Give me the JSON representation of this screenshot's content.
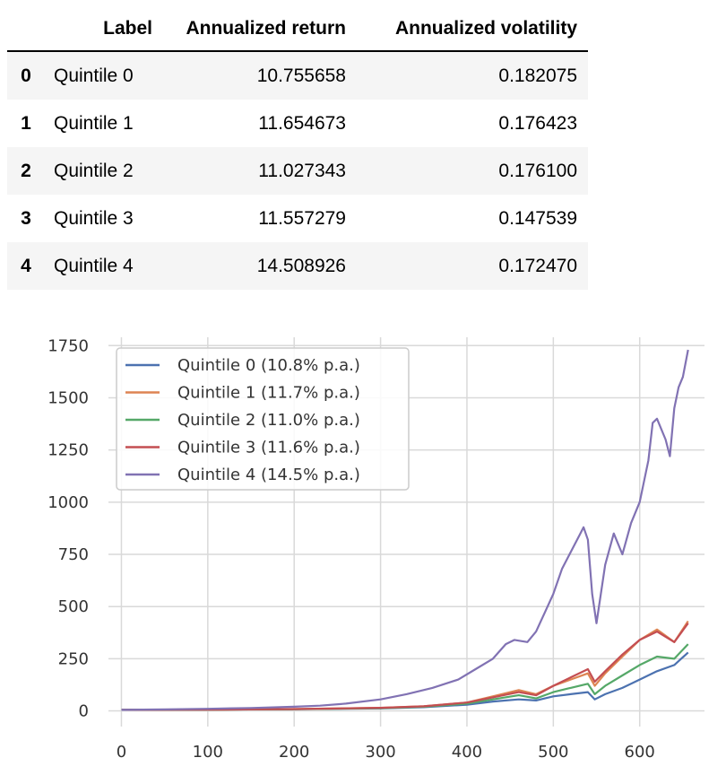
{
  "table": {
    "columns": [
      "Label",
      "Annualized return",
      "Annualized volatility"
    ],
    "rows": [
      {
        "index": "0",
        "label": "Quintile 0",
        "ret": "10.755658",
        "vol": "0.182075"
      },
      {
        "index": "1",
        "label": "Quintile 1",
        "ret": "11.654673",
        "vol": "0.176423"
      },
      {
        "index": "2",
        "label": "Quintile 2",
        "ret": "11.027343",
        "vol": "0.176100"
      },
      {
        "index": "3",
        "label": "Quintile 3",
        "ret": "11.557279",
        "vol": "0.147539"
      },
      {
        "index": "4",
        "label": "Quintile 4",
        "ret": "14.508926",
        "vol": "0.172470"
      }
    ]
  },
  "chart_data": {
    "type": "line",
    "title": "",
    "xlabel": "",
    "ylabel": "",
    "xlim": [
      -15,
      675
    ],
    "ylim": [
      -75,
      1790
    ],
    "xticks": [
      0,
      100,
      200,
      300,
      400,
      500,
      600
    ],
    "yticks": [
      0,
      250,
      500,
      750,
      1000,
      1250,
      1500,
      1750
    ],
    "grid": true,
    "legend_position": "upper left",
    "series": [
      {
        "name": "Quintile 0 (10.8% p.a.)",
        "color": "#4c72b0",
        "x": [
          0,
          100,
          200,
          300,
          350,
          400,
          430,
          460,
          480,
          500,
          520,
          540,
          548,
          560,
          580,
          600,
          620,
          640,
          656
        ],
        "y": [
          5,
          6,
          8,
          12,
          18,
          30,
          45,
          55,
          50,
          70,
          80,
          90,
          55,
          80,
          110,
          150,
          190,
          220,
          280
        ]
      },
      {
        "name": "Quintile 1 (11.7% p.a.)",
        "color": "#dd8452",
        "x": [
          0,
          100,
          200,
          300,
          350,
          400,
          430,
          460,
          480,
          500,
          520,
          540,
          548,
          560,
          580,
          600,
          620,
          640,
          656
        ],
        "y": [
          5,
          6,
          9,
          15,
          22,
          40,
          70,
          100,
          80,
          120,
          150,
          180,
          120,
          180,
          260,
          340,
          390,
          330,
          430
        ]
      },
      {
        "name": "Quintile 2 (11.0% p.a.)",
        "color": "#55a868",
        "x": [
          0,
          100,
          200,
          300,
          350,
          400,
          430,
          460,
          480,
          500,
          520,
          540,
          548,
          560,
          580,
          600,
          620,
          640,
          656
        ],
        "y": [
          5,
          6,
          8,
          13,
          20,
          35,
          55,
          75,
          60,
          90,
          110,
          130,
          80,
          120,
          170,
          220,
          260,
          250,
          320
        ]
      },
      {
        "name": "Quintile 3 (11.6% p.a.)",
        "color": "#c44e52",
        "x": [
          0,
          100,
          200,
          300,
          350,
          400,
          430,
          460,
          480,
          500,
          520,
          540,
          548,
          560,
          580,
          600,
          620,
          640,
          656
        ],
        "y": [
          5,
          6,
          9,
          15,
          22,
          40,
          65,
          90,
          75,
          120,
          160,
          200,
          140,
          190,
          270,
          340,
          380,
          330,
          420
        ]
      },
      {
        "name": "Quintile 4 (14.5% p.a.)",
        "color": "#8172b3",
        "x": [
          0,
          50,
          100,
          150,
          200,
          230,
          260,
          300,
          330,
          360,
          390,
          410,
          430,
          445,
          455,
          470,
          480,
          490,
          500,
          510,
          520,
          530,
          535,
          540,
          545,
          550,
          560,
          570,
          580,
          590,
          600,
          610,
          615,
          620,
          630,
          635,
          640,
          645,
          650,
          656
        ],
        "y": [
          5,
          7,
          10,
          14,
          20,
          25,
          35,
          55,
          80,
          110,
          150,
          200,
          250,
          320,
          340,
          330,
          380,
          470,
          560,
          680,
          760,
          840,
          880,
          820,
          560,
          420,
          700,
          850,
          750,
          900,
          1000,
          1200,
          1380,
          1400,
          1300,
          1220,
          1450,
          1550,
          1600,
          1730
        ]
      }
    ]
  }
}
